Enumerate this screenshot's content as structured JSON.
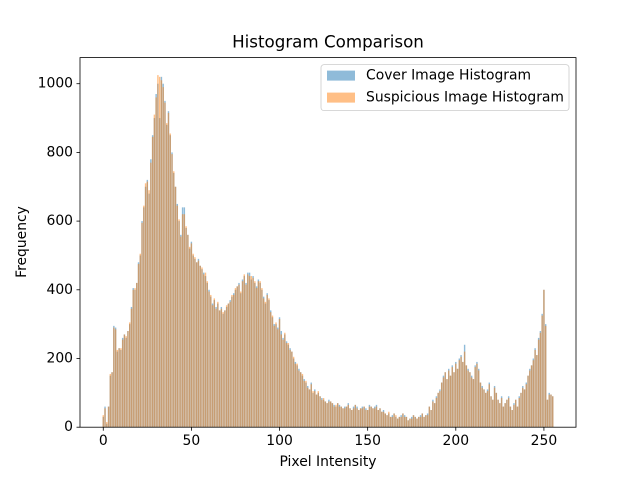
{
  "chart_data": {
    "type": "bar",
    "title": "Histogram Comparison",
    "x_label": "Pixel Intensity",
    "y_label": "Frequency",
    "legend": "upper right",
    "x": [
      0,
      1,
      2,
      3,
      4,
      5,
      6,
      7,
      8,
      9,
      10,
      11,
      12,
      13,
      14,
      15,
      16,
      17,
      18,
      19,
      20,
      21,
      22,
      23,
      24,
      25,
      26,
      27,
      28,
      29,
      30,
      31,
      32,
      33,
      34,
      35,
      36,
      37,
      38,
      39,
      40,
      41,
      42,
      43,
      44,
      45,
      46,
      47,
      48,
      49,
      50,
      51,
      52,
      53,
      54,
      55,
      56,
      57,
      58,
      59,
      60,
      61,
      62,
      63,
      64,
      65,
      66,
      67,
      68,
      69,
      70,
      71,
      72,
      73,
      74,
      75,
      76,
      77,
      78,
      79,
      80,
      81,
      82,
      83,
      84,
      85,
      86,
      87,
      88,
      89,
      90,
      91,
      92,
      93,
      94,
      95,
      96,
      97,
      98,
      99,
      100,
      101,
      102,
      103,
      104,
      105,
      106,
      107,
      108,
      109,
      110,
      111,
      112,
      113,
      114,
      115,
      116,
      117,
      118,
      119,
      120,
      121,
      122,
      123,
      124,
      125,
      126,
      127,
      128,
      129,
      130,
      131,
      132,
      133,
      134,
      135,
      136,
      137,
      138,
      139,
      140,
      141,
      142,
      143,
      144,
      145,
      146,
      147,
      148,
      149,
      150,
      151,
      152,
      153,
      154,
      155,
      156,
      157,
      158,
      159,
      160,
      161,
      162,
      163,
      164,
      165,
      166,
      167,
      168,
      169,
      170,
      171,
      172,
      173,
      174,
      175,
      176,
      177,
      178,
      179,
      180,
      181,
      182,
      183,
      184,
      185,
      186,
      187,
      188,
      189,
      190,
      191,
      192,
      193,
      194,
      195,
      196,
      197,
      198,
      199,
      200,
      201,
      202,
      203,
      204,
      205,
      206,
      207,
      208,
      209,
      210,
      211,
      212,
      213,
      214,
      215,
      216,
      217,
      218,
      219,
      220,
      221,
      222,
      223,
      224,
      225,
      226,
      227,
      228,
      229,
      230,
      231,
      232,
      233,
      234,
      235,
      236,
      237,
      238,
      239,
      240,
      241,
      242,
      243,
      244,
      245,
      246,
      247,
      248,
      249,
      250,
      251,
      252,
      253,
      254,
      255
    ],
    "series": [
      {
        "name": "Cover Image Histogram",
        "color": "#1f77b4",
        "alpha": 0.5,
        "values": [
          30,
          60,
          10,
          60,
          150,
          160,
          295,
          290,
          220,
          230,
          225,
          260,
          270,
          260,
          280,
          300,
          350,
          405,
          400,
          420,
          480,
          500,
          600,
          640,
          700,
          720,
          680,
          780,
          850,
          900,
          970,
          1000,
          900,
          1020,
          1000,
          950,
          880,
          920,
          850,
          800,
          740,
          700,
          650,
          600,
          560,
          640,
          640,
          580,
          560,
          520,
          540,
          500,
          490,
          480,
          490,
          470,
          460,
          450,
          440,
          420,
          400,
          380,
          360,
          370,
          350,
          360,
          340,
          350,
          330,
          340,
          350,
          360,
          370,
          380,
          390,
          400,
          410,
          420,
          390,
          430,
          440,
          420,
          450,
          450,
          430,
          440,
          420,
          410,
          430,
          420,
          400,
          380,
          360,
          390,
          370,
          340,
          320,
          300,
          300,
          290,
          320,
          280,
          260,
          270,
          250,
          240,
          230,
          220,
          200,
          190,
          180,
          170,
          160,
          150,
          140,
          130,
          120,
          110,
          130,
          100,
          110,
          95,
          100,
          90,
          85,
          80,
          75,
          70,
          80,
          75,
          70,
          65,
          60,
          70,
          65,
          60,
          55,
          60,
          60,
          70,
          55,
          50,
          60,
          65,
          60,
          50,
          55,
          60,
          60,
          55,
          50,
          65,
          60,
          55,
          60,
          65,
          50,
          55,
          45,
          50,
          40,
          35,
          40,
          30,
          35,
          40,
          30,
          25,
          30,
          35,
          40,
          35,
          30,
          20,
          25,
          30,
          35,
          30,
          25,
          30,
          35,
          40,
          30,
          35,
          40,
          60,
          50,
          80,
          70,
          90,
          100,
          110,
          130,
          150,
          160,
          140,
          170,
          150,
          180,
          160,
          190,
          170,
          200,
          210,
          190,
          240,
          180,
          170,
          160,
          150,
          140,
          180,
          190,
          170,
          130,
          120,
          110,
          100,
          110,
          130,
          90,
          80,
          120,
          100,
          80,
          70,
          90,
          60,
          70,
          80,
          90,
          60,
          50,
          70,
          80,
          60,
          90,
          100,
          120,
          110,
          130,
          150,
          170,
          180,
          200,
          230,
          210,
          260,
          280,
          330,
          400,
          300,
          80,
          100,
          95,
          90
        ]
      },
      {
        "name": "Suspicious Image Histogram",
        "color": "#ff7f0e",
        "alpha": 0.5,
        "values": [
          35,
          55,
          15,
          60,
          155,
          160,
          290,
          285,
          225,
          230,
          230,
          255,
          270,
          265,
          280,
          305,
          345,
          400,
          405,
          420,
          475,
          505,
          595,
          645,
          710,
          715,
          690,
          770,
          845,
          910,
          960,
          1025,
          1020,
          1010,
          990,
          945,
          885,
          915,
          855,
          795,
          745,
          700,
          645,
          605,
          555,
          620,
          620,
          585,
          560,
          525,
          535,
          505,
          495,
          480,
          485,
          470,
          465,
          445,
          450,
          425,
          395,
          385,
          355,
          375,
          345,
          365,
          340,
          345,
          335,
          340,
          355,
          360,
          365,
          385,
          385,
          405,
          410,
          415,
          395,
          425,
          445,
          415,
          445,
          440,
          440,
          435,
          425,
          405,
          425,
          425,
          405,
          375,
          365,
          385,
          375,
          335,
          325,
          295,
          305,
          285,
          315,
          270,
          255,
          275,
          245,
          245,
          225,
          220,
          205,
          185,
          185,
          165,
          160,
          155,
          135,
          135,
          115,
          110,
          125,
          105,
          105,
          95,
          105,
          90,
          80,
          85,
          75,
          70,
          75,
          75,
          70,
          60,
          65,
          70,
          60,
          60,
          55,
          55,
          60,
          65,
          55,
          50,
          55,
          65,
          55,
          50,
          55,
          55,
          60,
          50,
          50,
          60,
          60,
          55,
          55,
          60,
          50,
          55,
          45,
          45,
          40,
          35,
          45,
          30,
          30,
          40,
          35,
          25,
          30,
          30,
          40,
          30,
          30,
          20,
          25,
          25,
          35,
          30,
          25,
          30,
          30,
          40,
          30,
          35,
          35,
          60,
          50,
          75,
          70,
          85,
          100,
          105,
          130,
          145,
          160,
          140,
          165,
          150,
          175,
          160,
          185,
          170,
          195,
          205,
          190,
          220,
          180,
          165,
          160,
          145,
          140,
          175,
          185,
          165,
          130,
          115,
          110,
          100,
          105,
          125,
          90,
          80,
          115,
          100,
          80,
          70,
          85,
          60,
          70,
          80,
          85,
          60,
          50,
          65,
          80,
          60,
          85,
          100,
          115,
          110,
          125,
          150,
          165,
          180,
          195,
          225,
          210,
          255,
          275,
          325,
          400,
          295,
          80,
          95,
          95,
          90
        ]
      }
    ],
    "xlim": [
      -13.2,
      268.2
    ],
    "xticks": [
      0,
      50,
      100,
      150,
      200,
      250
    ],
    "ylim": [
      0,
      1076
    ],
    "yticks": [
      0,
      200,
      400,
      600,
      800,
      1000
    ]
  }
}
